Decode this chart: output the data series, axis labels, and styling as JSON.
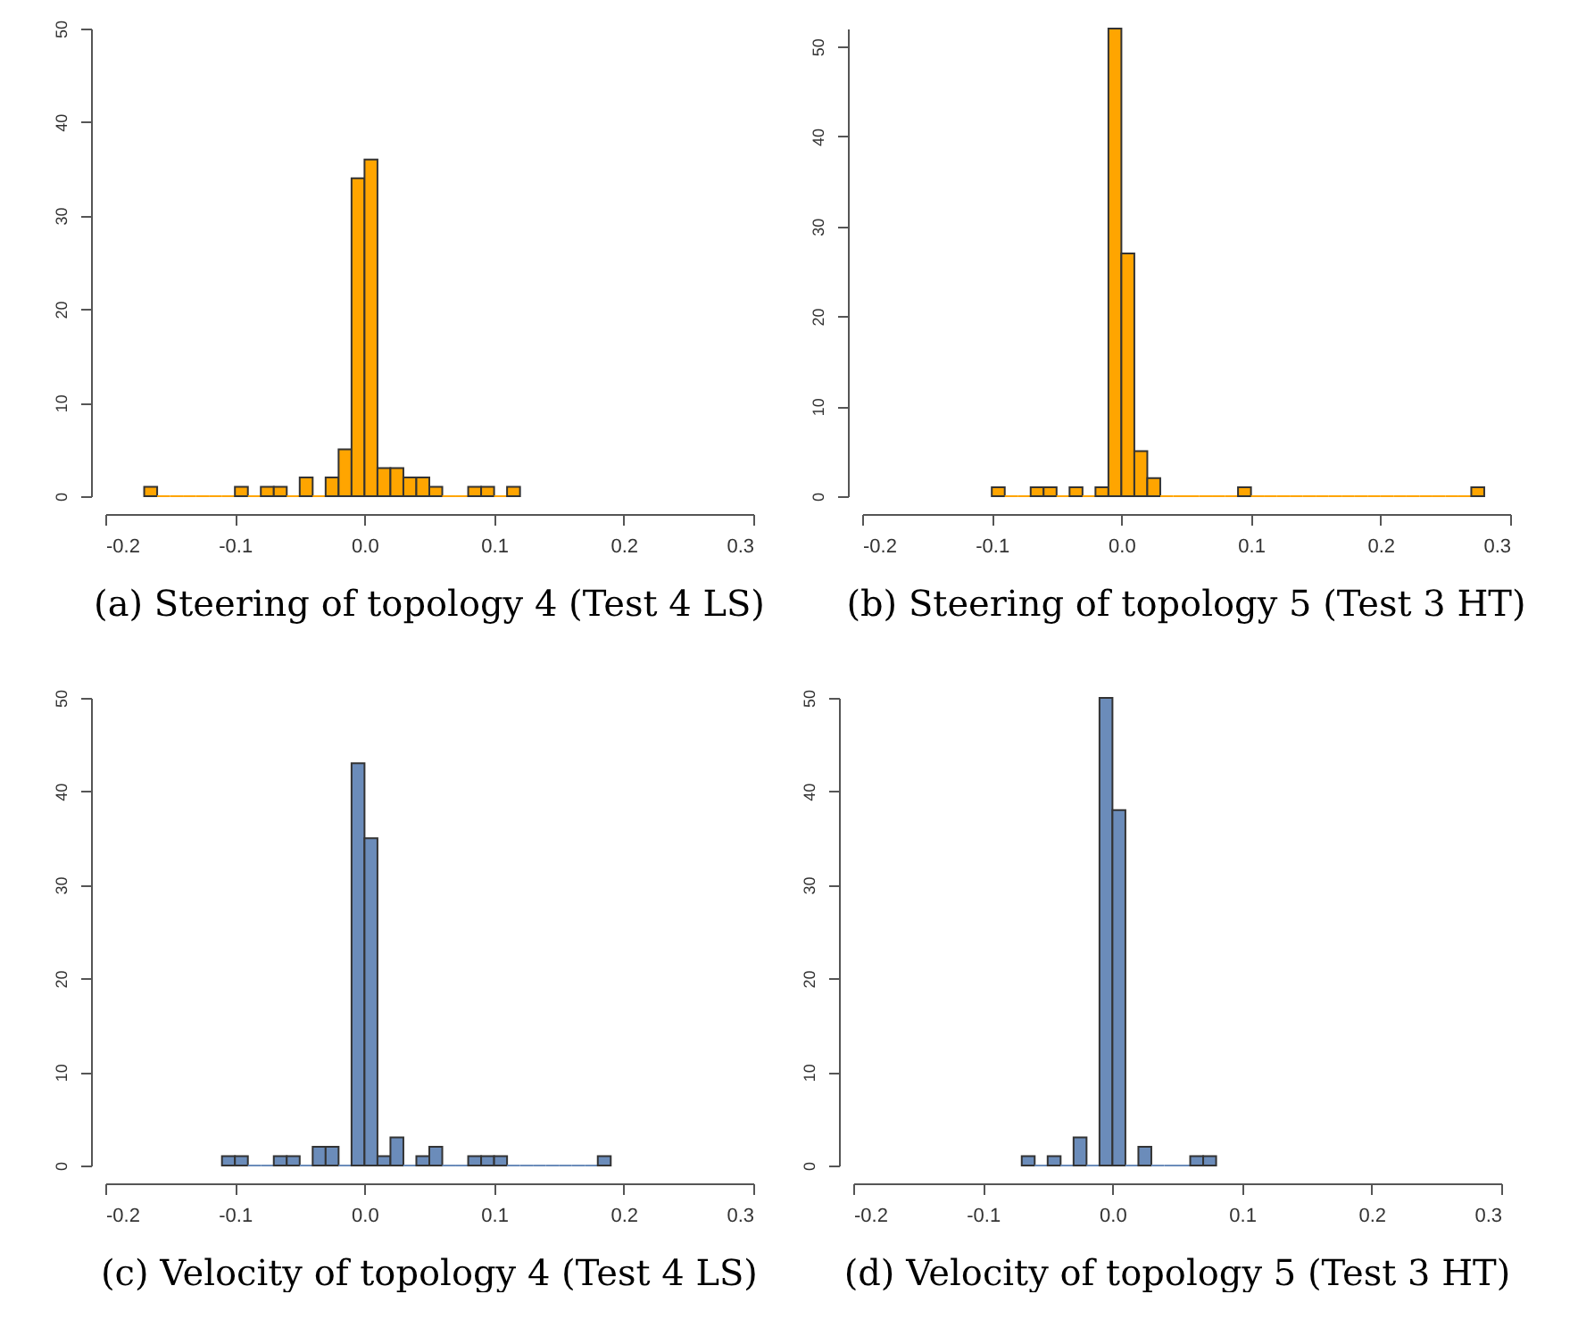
{
  "chart_data": [
    {
      "type": "histogram",
      "title": "(a) Steering of topology 4 (Test 4 LS)",
      "color": "#ffa500",
      "xlim": [
        -0.2,
        0.3
      ],
      "xticks": [
        {
          "value": -0.2,
          "label": "-0.2"
        },
        {
          "value": -0.1,
          "label": "-0.1"
        },
        {
          "value": 0,
          "label": "0.0"
        },
        {
          "value": 0.1,
          "label": "0.1"
        },
        {
          "value": 0.2,
          "label": "0.2"
        },
        {
          "value": 0.3,
          "label": "0.3"
        }
      ],
      "ylim": [
        0,
        50
      ],
      "yticks": [
        0,
        10,
        20,
        30,
        40,
        50
      ],
      "bins": [
        -0.17,
        -0.16,
        -0.15,
        -0.14,
        -0.13,
        -0.12,
        -0.11,
        -0.1,
        -0.09,
        -0.08,
        -0.07,
        -0.06,
        -0.05,
        -0.04,
        -0.03,
        -0.02,
        -0.01,
        0,
        0.01,
        0.02,
        0.03,
        0.04,
        0.05,
        0.06,
        0.07,
        0.08,
        0.09,
        0.1,
        0.11,
        0.12
      ],
      "values": [
        1,
        0,
        0,
        0,
        0,
        0,
        0,
        1,
        0,
        1,
        1,
        0,
        2,
        0,
        2,
        5,
        34,
        36,
        3,
        3,
        2,
        2,
        1,
        0,
        0,
        1,
        1,
        0,
        1
      ]
    },
    {
      "type": "histogram",
      "title": "(b) Steering of topology 5 (Test 3 HT)",
      "color": "#ffa500",
      "xlim": [
        -0.2,
        0.3
      ],
      "xticks": [
        {
          "value": -0.2,
          "label": "-0.2"
        },
        {
          "value": -0.1,
          "label": "-0.1"
        },
        {
          "value": 0,
          "label": "0.0"
        },
        {
          "value": 0.1,
          "label": "0.1"
        },
        {
          "value": 0.2,
          "label": "0.2"
        },
        {
          "value": 0.3,
          "label": "0.3"
        }
      ],
      "ylim": [
        0,
        52
      ],
      "yticks": [
        0,
        10,
        20,
        30,
        40,
        50
      ],
      "bins": [
        -0.1,
        -0.09,
        -0.08,
        -0.07,
        -0.06,
        -0.05,
        -0.04,
        -0.03,
        -0.02,
        -0.01,
        0,
        0.01,
        0.02,
        0.03,
        0.04,
        0.05,
        0.06,
        0.07,
        0.08,
        0.09,
        0.1,
        0.11,
        0.12,
        0.13,
        0.14,
        0.15,
        0.16,
        0.17,
        0.18,
        0.19,
        0.2,
        0.21,
        0.22,
        0.23,
        0.24,
        0.25,
        0.26,
        0.27,
        0.28
      ],
      "values": [
        1,
        0,
        0,
        1,
        1,
        0,
        1,
        0,
        1,
        52,
        27,
        5,
        2,
        0,
        0,
        0,
        0,
        0,
        0,
        1,
        0,
        0,
        0,
        0,
        0,
        0,
        0,
        0,
        0,
        0,
        0,
        0,
        0,
        0,
        0,
        0,
        0,
        1
      ]
    },
    {
      "type": "histogram",
      "title": "(c) Velocity of topology 4 (Test 4 LS)",
      "color": "#6b8cba",
      "xlim": [
        -0.2,
        0.3
      ],
      "xticks": [
        {
          "value": -0.2,
          "label": "-0.2"
        },
        {
          "value": -0.1,
          "label": "-0.1"
        },
        {
          "value": 0,
          "label": "0.0"
        },
        {
          "value": 0.1,
          "label": "0.1"
        },
        {
          "value": 0.2,
          "label": "0.2"
        },
        {
          "value": 0.3,
          "label": "0.3"
        }
      ],
      "ylim": [
        0,
        50
      ],
      "yticks": [
        0,
        10,
        20,
        30,
        40,
        50
      ],
      "bins": [
        -0.11,
        -0.1,
        -0.09,
        -0.08,
        -0.07,
        -0.06,
        -0.05,
        -0.04,
        -0.03,
        -0.02,
        -0.01,
        0,
        0.01,
        0.02,
        0.03,
        0.04,
        0.05,
        0.06,
        0.07,
        0.08,
        0.09,
        0.1,
        0.11,
        0.12,
        0.13,
        0.14,
        0.15,
        0.16,
        0.17,
        0.18,
        0.19
      ],
      "values": [
        1,
        1,
        0,
        0,
        1,
        1,
        0,
        2,
        2,
        0,
        43,
        35,
        1,
        3,
        0,
        1,
        2,
        0,
        0,
        1,
        1,
        1,
        0,
        0,
        0,
        0,
        0,
        0,
        0,
        1
      ]
    },
    {
      "type": "histogram",
      "title": "(d) Velocity of topology 5 (Test 3 HT)",
      "color": "#6b8cba",
      "xlim": [
        -0.2,
        0.3
      ],
      "xticks": [
        {
          "value": -0.2,
          "label": "-0.2"
        },
        {
          "value": -0.1,
          "label": "-0.1"
        },
        {
          "value": 0,
          "label": "0.0"
        },
        {
          "value": 0.1,
          "label": "0.1"
        },
        {
          "value": 0.2,
          "label": "0.2"
        },
        {
          "value": 0.3,
          "label": "0.3"
        }
      ],
      "ylim": [
        0,
        50
      ],
      "yticks": [
        0,
        10,
        20,
        30,
        40,
        50
      ],
      "bins": [
        -0.07,
        -0.06,
        -0.05,
        -0.04,
        -0.03,
        -0.02,
        -0.01,
        0,
        0.01,
        0.02,
        0.03,
        0.04,
        0.05,
        0.06,
        0.07,
        0.08
      ],
      "values": [
        1,
        0,
        1,
        0,
        3,
        0,
        50,
        38,
        0,
        2,
        0,
        0,
        0,
        1,
        1
      ]
    }
  ]
}
